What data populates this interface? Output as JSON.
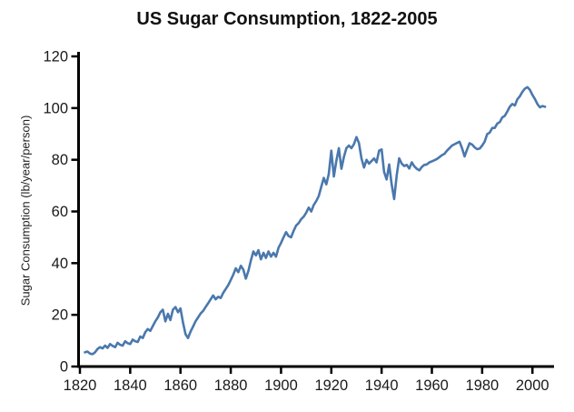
{
  "title": "US Sugar Consumption, 1822-2005",
  "colors": {
    "line": "#4a78ad",
    "axis": "#000000",
    "tick_label": "#1a1a1a",
    "background": "#ffffff"
  },
  "chart_data": {
    "type": "line",
    "title": "US Sugar Consumption, 1822-2005",
    "xlabel": "",
    "ylabel": "Sugar Consumption (lb/year/person)",
    "legend": "none",
    "grid": false,
    "xlim": [
      1820,
      2009
    ],
    "ylim": [
      0,
      120
    ],
    "xticks": [
      1820,
      1840,
      1860,
      1880,
      1900,
      1920,
      1940,
      1960,
      1980,
      2000
    ],
    "yticks": [
      0,
      20,
      40,
      60,
      80,
      100,
      120
    ],
    "series": [
      {
        "name": "US sugar consumption (lb/year/person)",
        "color": "#4a78ad",
        "year_start": 1822,
        "year_end": 2005,
        "values": [
          5.5,
          5.8,
          5.0,
          4.8,
          5.5,
          6.8,
          7.5,
          7.0,
          8.1,
          7.2,
          8.7,
          8.0,
          7.5,
          9.2,
          8.4,
          8.1,
          9.8,
          9.0,
          8.7,
          10.4,
          9.8,
          9.5,
          11.6,
          11.0,
          13.3,
          14.5,
          13.8,
          15.7,
          17.5,
          19.0,
          21.0,
          22.0,
          17.5,
          20.4,
          18.0,
          22.0,
          23.0,
          21.0,
          22.5,
          17.0,
          12.5,
          11.0,
          13.5,
          15.5,
          17.5,
          19.0,
          20.5,
          21.5,
          23.0,
          24.5,
          26.0,
          27.5,
          26.0,
          27.0,
          26.5,
          28.5,
          30.0,
          31.5,
          33.5,
          35.5,
          38.0,
          36.5,
          39.0,
          37.5,
          34.0,
          37.0,
          41.0,
          44.5,
          43.0,
          45.0,
          41.5,
          44.0,
          42.0,
          44.5,
          42.5,
          44.0,
          42.5,
          46.0,
          47.8,
          50.0,
          52.0,
          50.5,
          50.0,
          52.5,
          54.5,
          55.5,
          57.0,
          58.0,
          59.5,
          61.5,
          60.0,
          62.5,
          64.0,
          66.0,
          69.5,
          73.0,
          70.5,
          74.5,
          83.5,
          73.5,
          79.5,
          84.5,
          76.5,
          81.0,
          84.5,
          85.5,
          84.5,
          86.0,
          88.8,
          86.5,
          80.5,
          77.0,
          80.0,
          78.5,
          79.5,
          80.5,
          79.0,
          83.5,
          84.0,
          75.3,
          72.4,
          78.2,
          70.6,
          64.8,
          74.0,
          80.6,
          78.5,
          77.6,
          78.0,
          76.6,
          79.0,
          77.5,
          76.5,
          75.9,
          77.2,
          78.0,
          78.2,
          79.0,
          79.4,
          79.8,
          80.3,
          81.0,
          81.8,
          82.3,
          83.5,
          84.5,
          85.5,
          86.0,
          86.5,
          87.0,
          84.5,
          81.3,
          84.0,
          86.4,
          85.9,
          84.8,
          84.1,
          84.3,
          85.5,
          87.0,
          89.9,
          90.5,
          92.3,
          92.3,
          94.0,
          94.6,
          96.4,
          97.0,
          98.7,
          100.5,
          101.6,
          101.0,
          103.4,
          104.6,
          106.3,
          107.5,
          108.1,
          107.0,
          105.1,
          103.5,
          101.5,
          100.3,
          100.8,
          100.5
        ]
      }
    ]
  }
}
